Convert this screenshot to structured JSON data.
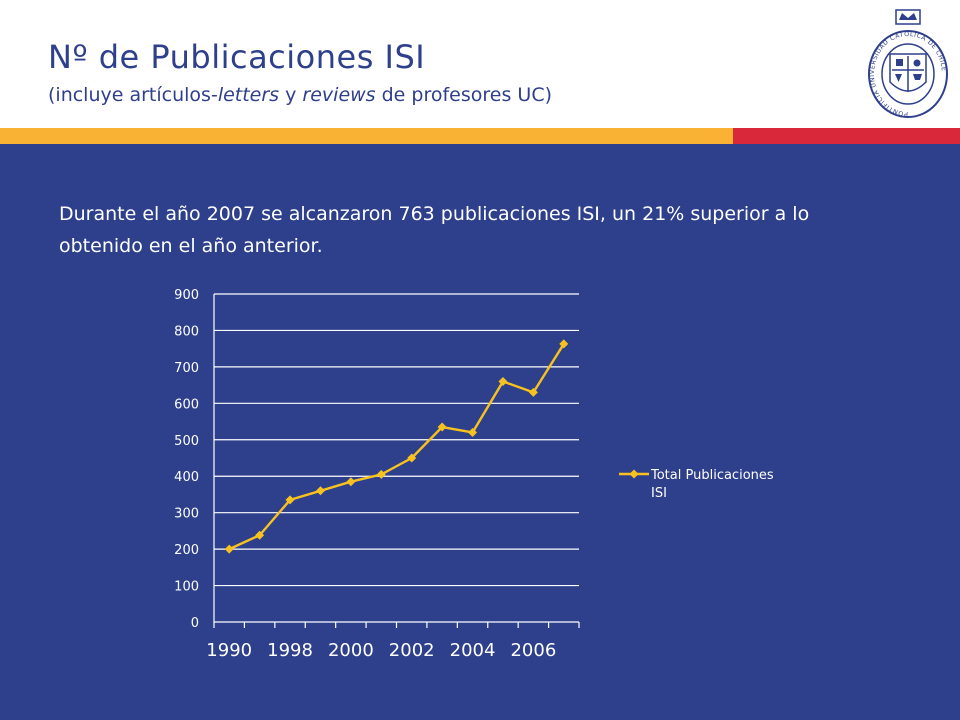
{
  "header": {
    "title": "Nº de Publicaciones ISI",
    "subtitle_parts": [
      "(incluye artículos-",
      "letters",
      " y ",
      "reviews",
      " de profesores UC)"
    ],
    "logo_text": "PONTIFICIA UNIVERSIDAD CATOLICA DE CHILE"
  },
  "colors": {
    "background": "#2e3f8c",
    "band_gold": "#f9b233",
    "band_red": "#d8283a",
    "series": "#f7c21f",
    "grid": "#ffffff"
  },
  "summary": "Durante el año 2007 se alcanzaron 763 publicaciones ISI, un 21% superior a lo obtenido en el año anterior.",
  "chart_data": {
    "type": "line",
    "x": [
      1990,
      1997,
      1998,
      1999,
      2000,
      2001,
      2002,
      2003,
      2004,
      2005,
      2006,
      2007
    ],
    "x_tick_labels": [
      "1990",
      "1998",
      "2000",
      "2002",
      "2004",
      "2006"
    ],
    "series": [
      {
        "name": "Total Publicaciones ISI",
        "values": [
          200,
          238,
          335,
          360,
          385,
          405,
          450,
          535,
          520,
          660,
          630,
          763
        ]
      }
    ],
    "title": "",
    "xlabel": "",
    "ylabel": "",
    "ylim": [
      0,
      900
    ],
    "y_ticks": [
      0,
      100,
      200,
      300,
      400,
      500,
      600,
      700,
      800,
      900
    ],
    "grid": true,
    "legend_position": "right"
  }
}
